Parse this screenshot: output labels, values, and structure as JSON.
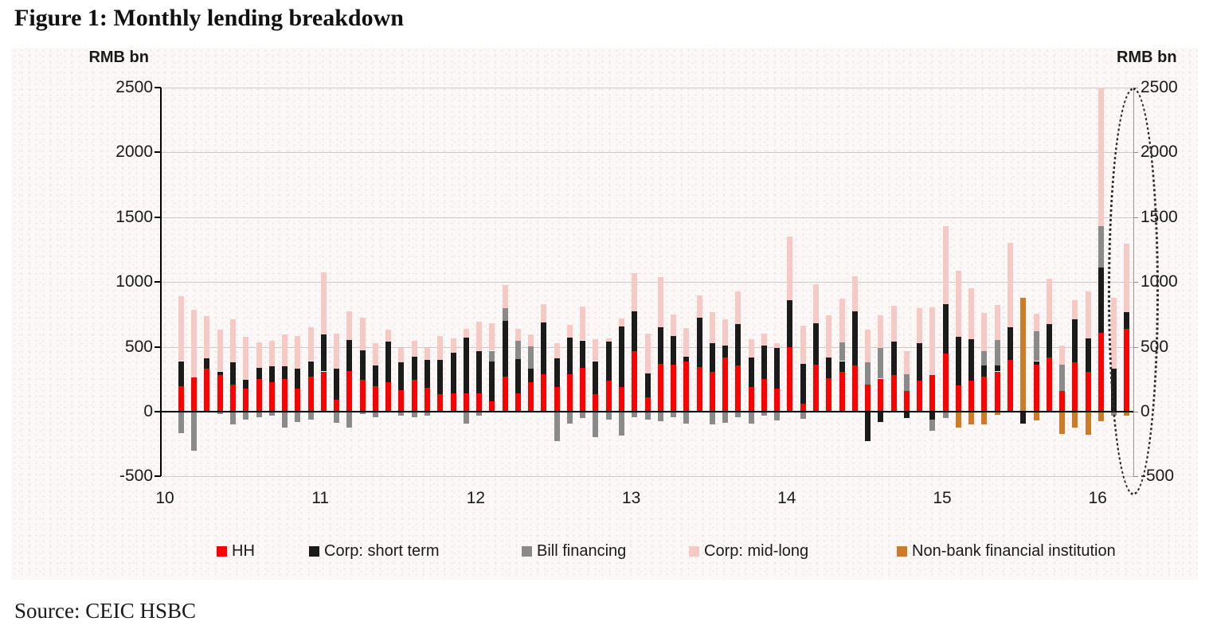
{
  "page": {
    "title": "Figure 1: Monthly lending breakdown",
    "source": "Source: CEIC HSBC"
  },
  "chart_data": {
    "type": "bar",
    "stacked": true,
    "title": "Monthly lending breakdown",
    "unit": "RMB bn",
    "ylabel_left": "RMB bn",
    "ylabel_right": "RMB bn",
    "ylim": [
      -500,
      2500
    ],
    "yticks": [
      2500,
      2000,
      1500,
      1000,
      500,
      0,
      -500
    ],
    "x_year_labels": [
      "10",
      "11",
      "12",
      "13",
      "14",
      "15",
      "16"
    ],
    "grid": true,
    "legend_position": "bottom",
    "annotation": {
      "type": "dotted-ellipse",
      "around": "latest months (2016)"
    },
    "months": [
      "Feb-10",
      "Mar-10",
      "Apr-10",
      "May-10",
      "Jun-10",
      "Jul-10",
      "Aug-10",
      "Sep-10",
      "Oct-10",
      "Nov-10",
      "Dec-10",
      "Jan-11",
      "Feb-11",
      "Mar-11",
      "Apr-11",
      "May-11",
      "Jun-11",
      "Jul-11",
      "Aug-11",
      "Sep-11",
      "Oct-11",
      "Nov-11",
      "Dec-11",
      "Jan-12",
      "Feb-12",
      "Mar-12",
      "Apr-12",
      "May-12",
      "Jun-12",
      "Jul-12",
      "Aug-12",
      "Sep-12",
      "Oct-12",
      "Nov-12",
      "Dec-12",
      "Jan-13",
      "Feb-13",
      "Mar-13",
      "Apr-13",
      "May-13",
      "Jun-13",
      "Jul-13",
      "Aug-13",
      "Sep-13",
      "Oct-13",
      "Nov-13",
      "Dec-13",
      "Jan-14",
      "Feb-14",
      "Mar-14",
      "Apr-14",
      "May-14",
      "Jun-14",
      "Jul-14",
      "Aug-14",
      "Sep-14",
      "Oct-14",
      "Nov-14",
      "Dec-14",
      "Jan-15",
      "Feb-15",
      "Mar-15",
      "Apr-15",
      "May-15",
      "Jun-15",
      "Jul-15",
      "Aug-15",
      "Sep-15",
      "Oct-15",
      "Nov-15",
      "Dec-15",
      "Jan-16",
      "Feb-16",
      "Mar-16"
    ],
    "series": [
      {
        "name": "HH",
        "color": "#fe0000",
        "values": [
          195,
          265,
          330,
          280,
          210,
          180,
          250,
          230,
          250,
          180,
          270,
          310,
          95,
          315,
          245,
          195,
          225,
          165,
          245,
          185,
          135,
          140,
          140,
          140,
          80,
          270,
          140,
          230,
          290,
          190,
          290,
          340,
          135,
          240,
          190,
          465,
          110,
          370,
          360,
          385,
          345,
          305,
          420,
          355,
          190,
          250,
          180,
          500,
          60,
          365,
          260,
          310,
          355,
          210,
          255,
          285,
          160,
          240,
          285,
          450,
          200,
          240,
          270,
          310,
          400,
          0,
          360,
          415,
          160,
          380,
          310,
          610,
          0,
          640
        ]
      },
      {
        "name": "Corp: short term",
        "color": "#1b1b1b",
        "values": [
          195,
          0,
          80,
          30,
          170,
          65,
          90,
          120,
          100,
          150,
          120,
          285,
          235,
          240,
          230,
          160,
          315,
          215,
          180,
          215,
          265,
          315,
          430,
          325,
          310,
          430,
          265,
          100,
          400,
          220,
          280,
          210,
          255,
          300,
          470,
          310,
          185,
          280,
          225,
          40,
          380,
          225,
          90,
          320,
          225,
          260,
          310,
          360,
          310,
          315,
          155,
          80,
          420,
          -230,
          -80,
          255,
          -50,
          290,
          -60,
          380,
          375,
          320,
          85,
          45,
          250,
          -90,
          30,
          260,
          0,
          335,
          255,
          500,
          330,
          130
        ]
      },
      {
        "name": "Bill financing",
        "color": "#8a8a8a",
        "values": [
          -165,
          -300,
          0,
          -20,
          -95,
          -60,
          -40,
          -30,
          -120,
          -80,
          -60,
          0,
          -85,
          -125,
          -20,
          -45,
          0,
          -30,
          -40,
          -30,
          0,
          0,
          -90,
          -30,
          80,
          100,
          140,
          175,
          0,
          -225,
          -90,
          -50,
          -195,
          -60,
          -185,
          -40,
          -60,
          -75,
          -45,
          -90,
          0,
          -100,
          -85,
          -45,
          -90,
          -30,
          -65,
          0,
          -55,
          0,
          0,
          145,
          0,
          170,
          235,
          0,
          130,
          0,
          -85,
          -50,
          0,
          0,
          110,
          200,
          0,
          0,
          230,
          0,
          205,
          0,
          0,
          320,
          -30,
          0
        ]
      },
      {
        "name": "Corp: mid-long",
        "color": "#f7c9c5",
        "values": [
          500,
          520,
          330,
          325,
          330,
          330,
          195,
          195,
          245,
          255,
          260,
          480,
          270,
          220,
          250,
          175,
          90,
          110,
          120,
          90,
          185,
          110,
          70,
          230,
          210,
          180,
          95,
          90,
          140,
          120,
          100,
          260,
          170,
          25,
          60,
          295,
          310,
          390,
          165,
          220,
          175,
          240,
          200,
          255,
          145,
          90,
          40,
          490,
          295,
          305,
          330,
          335,
          270,
          250,
          255,
          275,
          180,
          270,
          520,
          600,
          510,
          390,
          300,
          270,
          650,
          0,
          135,
          350,
          145,
          145,
          360,
          1070,
          550,
          525
        ]
      },
      {
        "name": "Non-bank financial institution",
        "color": "#cd7a29",
        "values": [
          0,
          0,
          0,
          0,
          0,
          0,
          0,
          0,
          0,
          0,
          0,
          0,
          0,
          0,
          0,
          0,
          0,
          0,
          0,
          0,
          0,
          0,
          0,
          0,
          0,
          0,
          0,
          0,
          0,
          0,
          0,
          0,
          0,
          0,
          0,
          0,
          0,
          0,
          0,
          0,
          0,
          0,
          0,
          0,
          0,
          0,
          0,
          0,
          0,
          0,
          0,
          0,
          0,
          0,
          0,
          0,
          0,
          0,
          0,
          0,
          -125,
          -100,
          -100,
          -25,
          0,
          880,
          -70,
          0,
          -170,
          -120,
          -180,
          -75,
          0,
          -30
        ]
      }
    ]
  }
}
